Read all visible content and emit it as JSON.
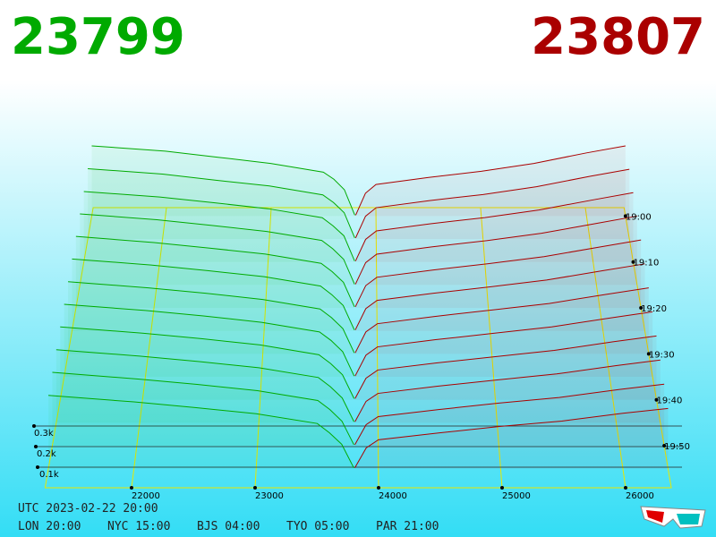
{
  "chart_data": {
    "type": "depth3d",
    "best_bid": 23799,
    "best_ask": 23807,
    "bid_color": "#00aa00",
    "ask_color": "#aa0000",
    "floor_color": "#e8e800",
    "xlim": [
      21300,
      26370
    ],
    "xticks": [
      22000,
      23000,
      24000,
      25000,
      26000
    ],
    "volume_ticks": [
      {
        "value": 100,
        "label": "0.1k"
      },
      {
        "value": 200,
        "label": "0.2k"
      },
      {
        "value": 300,
        "label": "0.3k"
      }
    ],
    "time_ticks": [
      "19:00",
      "19:10",
      "19:20",
      "19:30",
      "19:40",
      "19:50"
    ],
    "bid_prices": [
      21300,
      22000,
      22500,
      23000,
      23500,
      23600,
      23700,
      23799
    ],
    "ask_prices": [
      23807,
      23900,
      24000,
      24500,
      25000,
      25500,
      26000,
      26370
    ],
    "snapshots": [
      {
        "time": "19:00",
        "bids": [
          400,
          370,
          335,
          300,
          250,
          210,
          150,
          5
        ],
        "asks": [
          5,
          130,
          180,
          220,
          255,
          300,
          360,
          400
        ]
      },
      {
        "time": "19:05",
        "bids": [
          395,
          365,
          330,
          298,
          248,
          205,
          148,
          6
        ],
        "asks": [
          6,
          128,
          176,
          216,
          250,
          294,
          352,
          392
        ]
      },
      {
        "time": "19:10",
        "bids": [
          390,
          360,
          328,
          295,
          245,
          200,
          145,
          5
        ],
        "asks": [
          5,
          125,
          172,
          212,
          246,
          288,
          344,
          384
        ]
      },
      {
        "time": "19:15",
        "bids": [
          388,
          356,
          325,
          292,
          243,
          198,
          140,
          4
        ],
        "asks": [
          4,
          122,
          168,
          208,
          242,
          282,
          336,
          376
        ]
      },
      {
        "time": "19:20",
        "bids": [
          385,
          352,
          322,
          290,
          240,
          195,
          138,
          6
        ],
        "asks": [
          6,
          120,
          165,
          204,
          238,
          276,
          328,
          366
        ]
      },
      {
        "time": "19:25",
        "bids": [
          382,
          350,
          320,
          288,
          238,
          192,
          135,
          5
        ],
        "asks": [
          5,
          118,
          162,
          200,
          234,
          270,
          320,
          356
        ]
      },
      {
        "time": "19:30",
        "bids": [
          378,
          346,
          318,
          285,
          235,
          190,
          132,
          5
        ],
        "asks": [
          5,
          115,
          158,
          196,
          230,
          264,
          312,
          346
        ]
      },
      {
        "time": "19:35",
        "bids": [
          375,
          343,
          315,
          282,
          232,
          188,
          130,
          4
        ],
        "asks": [
          4,
          112,
          155,
          192,
          225,
          258,
          304,
          336
        ]
      },
      {
        "time": "19:40",
        "bids": [
          372,
          340,
          312,
          280,
          230,
          185,
          128,
          6
        ],
        "asks": [
          6,
          110,
          152,
          188,
          220,
          252,
          296,
          326
        ]
      },
      {
        "time": "19:45",
        "bids": [
          368,
          336,
          308,
          277,
          228,
          182,
          125,
          5
        ],
        "asks": [
          5,
          108,
          148,
          184,
          216,
          246,
          288,
          316
        ]
      },
      {
        "time": "19:50",
        "bids": [
          365,
          332,
          305,
          274,
          225,
          180,
          122,
          5
        ],
        "asks": [
          5,
          105,
          145,
          180,
          212,
          240,
          280,
          306
        ]
      },
      {
        "time": "19:55",
        "bids": [
          360,
          328,
          300,
          270,
          222,
          176,
          120,
          4
        ],
        "asks": [
          4,
          102,
          142,
          176,
          208,
          234,
          272,
          296
        ]
      }
    ],
    "footer": {
      "utc": "UTC 2023-02-22 20:00",
      "cities": [
        "LON 20:00",
        "NYC 15:00",
        "BJS 04:00",
        "TYO 05:00",
        "PAR 21:00"
      ]
    }
  }
}
